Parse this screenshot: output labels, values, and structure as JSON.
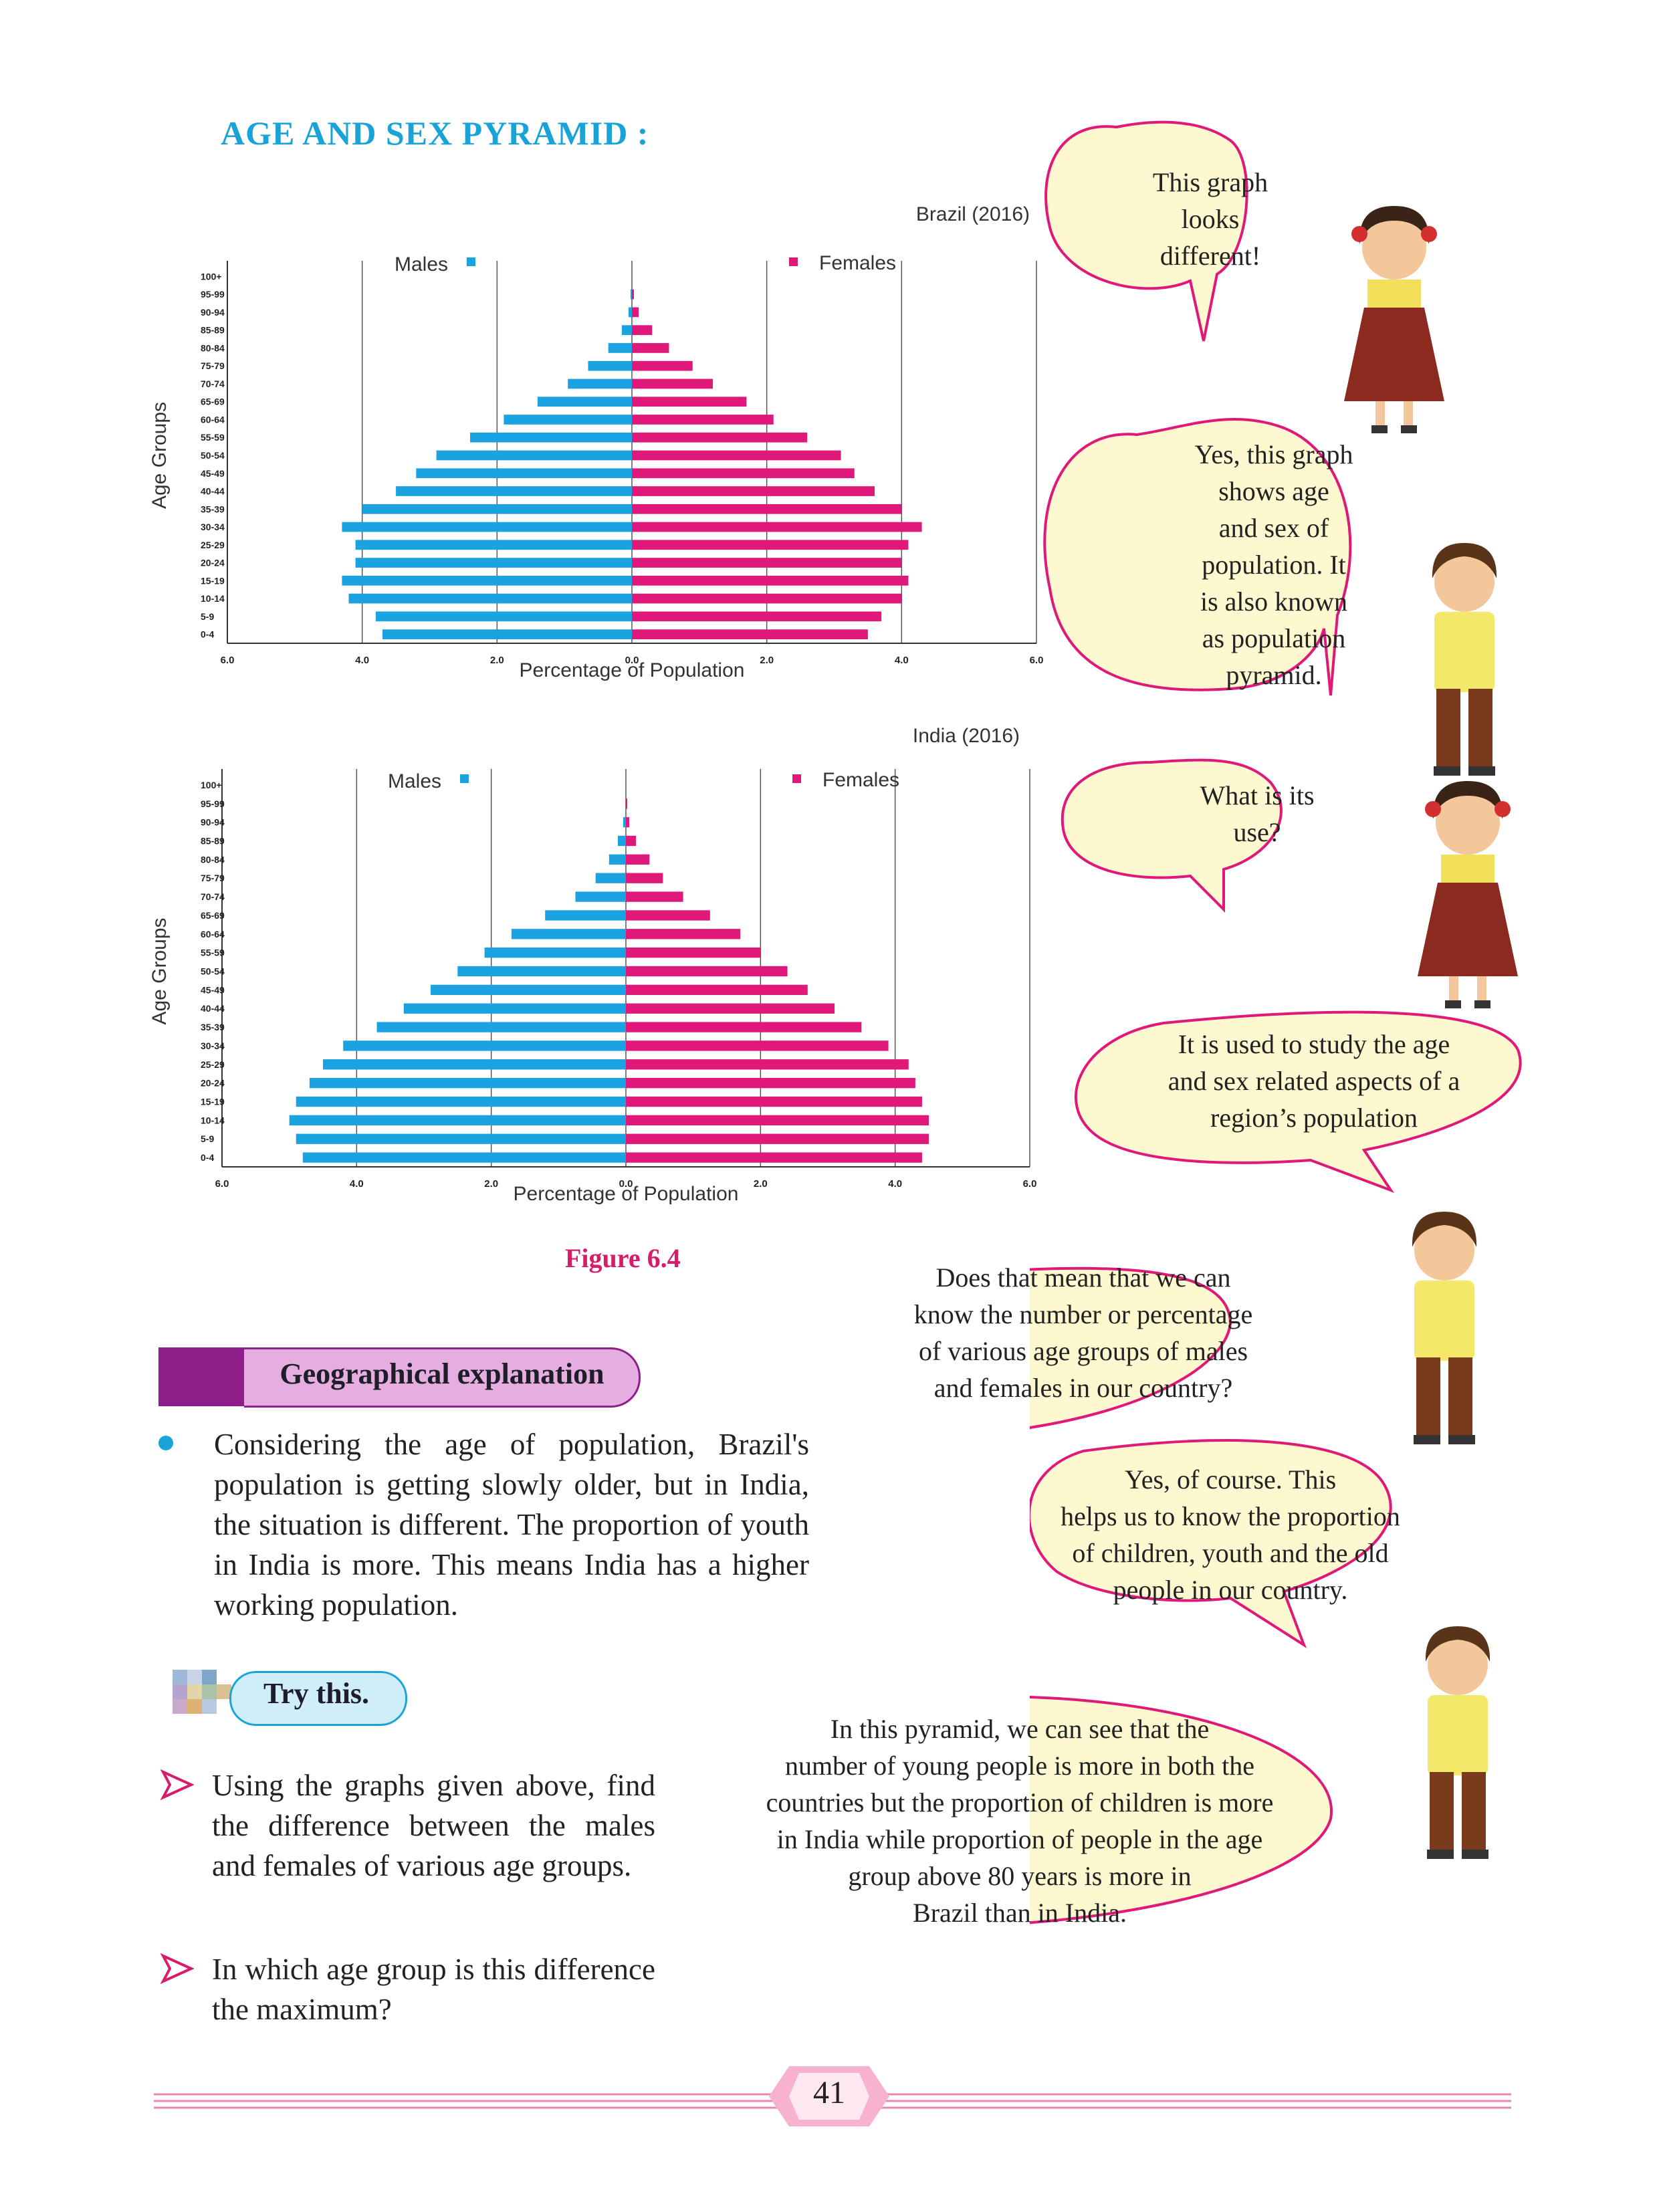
{
  "section_title": "AGE AND SEX PYRAMID :",
  "figure_caption": "Figure 6.4",
  "charts": {
    "common": {
      "males_label": "Males",
      "females_label": "Females",
      "ylabel": "Age Groups",
      "xlabel": "Percentage of Population",
      "x_ticks": [
        "6.0",
        "4.0",
        "2.0",
        "0.0",
        "2.0",
        "4.0",
        "6.0"
      ],
      "age_groups": [
        "0-4",
        "5-9",
        "10-14",
        "15-19",
        "20-24",
        "25-29",
        "30-34",
        "35-39",
        "40-44",
        "45-49",
        "50-54",
        "55-59",
        "60-64",
        "65-69",
        "70-74",
        "75-79",
        "80-84",
        "85-89",
        "90-94",
        "95-99",
        "100+"
      ]
    },
    "brazil_title": "Brazil (2016)",
    "india_title": "India (2016)"
  },
  "chart_data": [
    {
      "type": "bar",
      "orientation": "horizontal-population-pyramid",
      "title": "Brazil (2016)",
      "xlabel": "Percentage of Population",
      "ylabel": "Age Groups",
      "xlim": [
        -6.0,
        6.0
      ],
      "categories": [
        "0-4",
        "5-9",
        "10-14",
        "15-19",
        "20-24",
        "25-29",
        "30-34",
        "35-39",
        "40-44",
        "45-49",
        "50-54",
        "55-59",
        "60-64",
        "65-69",
        "70-74",
        "75-79",
        "80-84",
        "85-89",
        "90-94",
        "95-99",
        "100+"
      ],
      "series": [
        {
          "name": "Males",
          "color": "#1aa3e0",
          "values": [
            3.7,
            3.8,
            4.2,
            4.3,
            4.1,
            4.1,
            4.3,
            4.0,
            3.5,
            3.2,
            2.9,
            2.4,
            1.9,
            1.4,
            0.95,
            0.65,
            0.35,
            0.15,
            0.05,
            0.02,
            0.0
          ]
        },
        {
          "name": "Females",
          "color": "#e0187a",
          "values": [
            3.5,
            3.7,
            4.0,
            4.1,
            4.0,
            4.1,
            4.3,
            4.0,
            3.6,
            3.3,
            3.1,
            2.6,
            2.1,
            1.7,
            1.2,
            0.9,
            0.55,
            0.3,
            0.1,
            0.03,
            0.0
          ]
        }
      ]
    },
    {
      "type": "bar",
      "orientation": "horizontal-population-pyramid",
      "title": "India (2016)",
      "xlabel": "Percentage of Population",
      "ylabel": "Age Groups",
      "xlim": [
        -6.0,
        6.0
      ],
      "categories": [
        "0-4",
        "5-9",
        "10-14",
        "15-19",
        "20-24",
        "25-29",
        "30-34",
        "35-39",
        "40-44",
        "45-49",
        "50-54",
        "55-59",
        "60-64",
        "65-69",
        "70-74",
        "75-79",
        "80-84",
        "85-89",
        "90-94",
        "95-99",
        "100+"
      ],
      "series": [
        {
          "name": "Males",
          "color": "#1aa3e0",
          "values": [
            4.8,
            4.9,
            5.0,
            4.9,
            4.7,
            4.5,
            4.2,
            3.7,
            3.3,
            2.9,
            2.5,
            2.1,
            1.7,
            1.2,
            0.75,
            0.45,
            0.25,
            0.12,
            0.04,
            0.01,
            0.0
          ]
        },
        {
          "name": "Females",
          "color": "#e0187a",
          "values": [
            4.4,
            4.5,
            4.5,
            4.4,
            4.3,
            4.2,
            3.9,
            3.5,
            3.1,
            2.7,
            2.4,
            2.0,
            1.7,
            1.25,
            0.85,
            0.55,
            0.35,
            0.15,
            0.05,
            0.02,
            0.0
          ]
        }
      ]
    }
  ],
  "dialogue": [
    "This graph looks different!",
    "Yes, this graph shows age and sex of population. It is also known as population pyramid.",
    "What is its use?",
    "It is used to study the age and sex related aspects of a region's population",
    "Does that mean that we can know the number or percentage of various age groups of males and females in our country?",
    "Yes, of course. This helps us to know the proportion of children, youth and the old people in our country.",
    "In this pyramid, we can see that the number of young people is more in both the countries but the proportion of children is more in India while proportion of people in the age group above 80 years is more in Brazil than in India."
  ],
  "dialogue_lines": {
    "b1": [
      "This graph",
      "looks",
      "different!"
    ],
    "b2": [
      "Yes, this graph",
      "shows age",
      "and sex of",
      "population. It",
      "is also known",
      "as population",
      "pyramid."
    ],
    "b3": [
      "What is its",
      "use?"
    ],
    "b4": [
      "It is used to study the age",
      "and sex related aspects of a",
      "region’s population"
    ],
    "b5": [
      "Does that mean that we can",
      "know the number or percentage",
      "of various age groups of males",
      "and females in our country?"
    ],
    "b6": [
      "Yes, of course. This",
      "helps us to know the proportion",
      "of children, youth and the old",
      "people in our country."
    ],
    "b7": [
      "In this pyramid, we can see that the",
      "number of young people is more in both the",
      "countries but the proportion of children is more",
      "in India while proportion of people in the age",
      "group above 80 years is more in",
      "Brazil than in India."
    ]
  },
  "geo_heading": "Geographical explanation",
  "geo_text": "Considering the age of population, Brazil's population is getting slowly older, but in India, the situation is different. The proportion of youth  in India is more. This means India has a higher  working population.",
  "try_heading": "Try this.",
  "try_items": [
    "Using the graphs given above, find the difference between the males and females of various age groups.",
    "In which age group is this difference the maximum?"
  ],
  "page_number": "41",
  "colors": {
    "title": "#1aa3d8",
    "males": "#1aa3e0",
    "females": "#e0187a",
    "bubble_fill": "#fdf8cf",
    "bubble_border": "#e0187a",
    "caption": "#d81b6a",
    "heading_purple": "#8e1f8a"
  }
}
